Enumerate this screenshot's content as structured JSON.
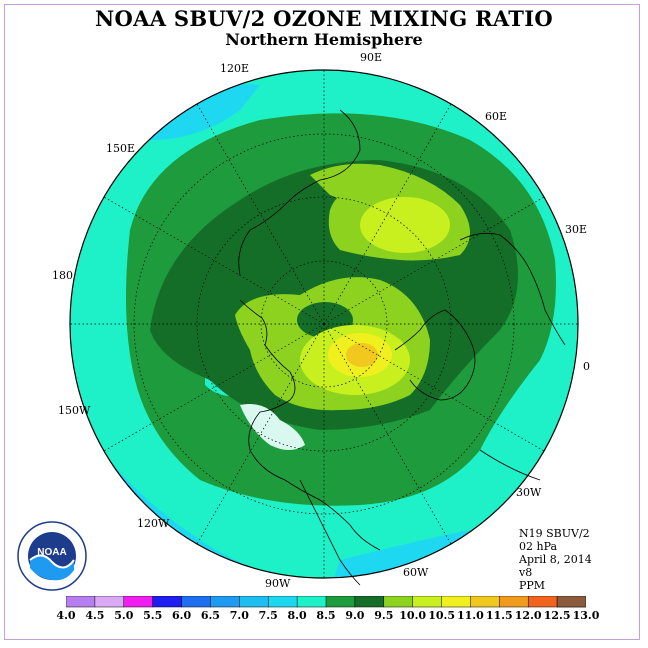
{
  "title": "NOAA SBUV/2 OZONE MIXING RATIO",
  "subtitle": "Northern Hemisphere",
  "longitude_labels": [
    "90E",
    "60E",
    "30E",
    "0",
    "30W",
    "60W",
    "90W",
    "120W",
    "150W",
    "180",
    "150E",
    "120E"
  ],
  "info": {
    "satellite": "N19 SBUV/2",
    "level": "02 hPa",
    "date": "April 8, 2014",
    "version": "v8",
    "units": "PPM"
  },
  "logo_text": "NOAA",
  "legend": {
    "levels": [
      "4.0",
      "4.5",
      "5.0",
      "5.5",
      "6.0",
      "6.5",
      "7.0",
      "7.5",
      "8.0",
      "8.5",
      "9.0",
      "9.5",
      "10.0",
      "10.5",
      "11.0",
      "11.5",
      "12.0",
      "12.5",
      "13.0"
    ],
    "colors": [
      "#b77ef0",
      "#d9a9f5",
      "#f01ef0",
      "#1e1ef0",
      "#1e6ef0",
      "#1e9bf0",
      "#1ebef0",
      "#1ed7f0",
      "#1ef0c8",
      "#1e9b3c",
      "#156e28",
      "#8cd21e",
      "#c8f01e",
      "#f0f01e",
      "#f0c81e",
      "#f09b1e",
      "#f0641e",
      "#f01e1e",
      "#8c5a3c"
    ]
  },
  "colors": {
    "frame": "#c8a0d8",
    "map_border": "#000000"
  }
}
